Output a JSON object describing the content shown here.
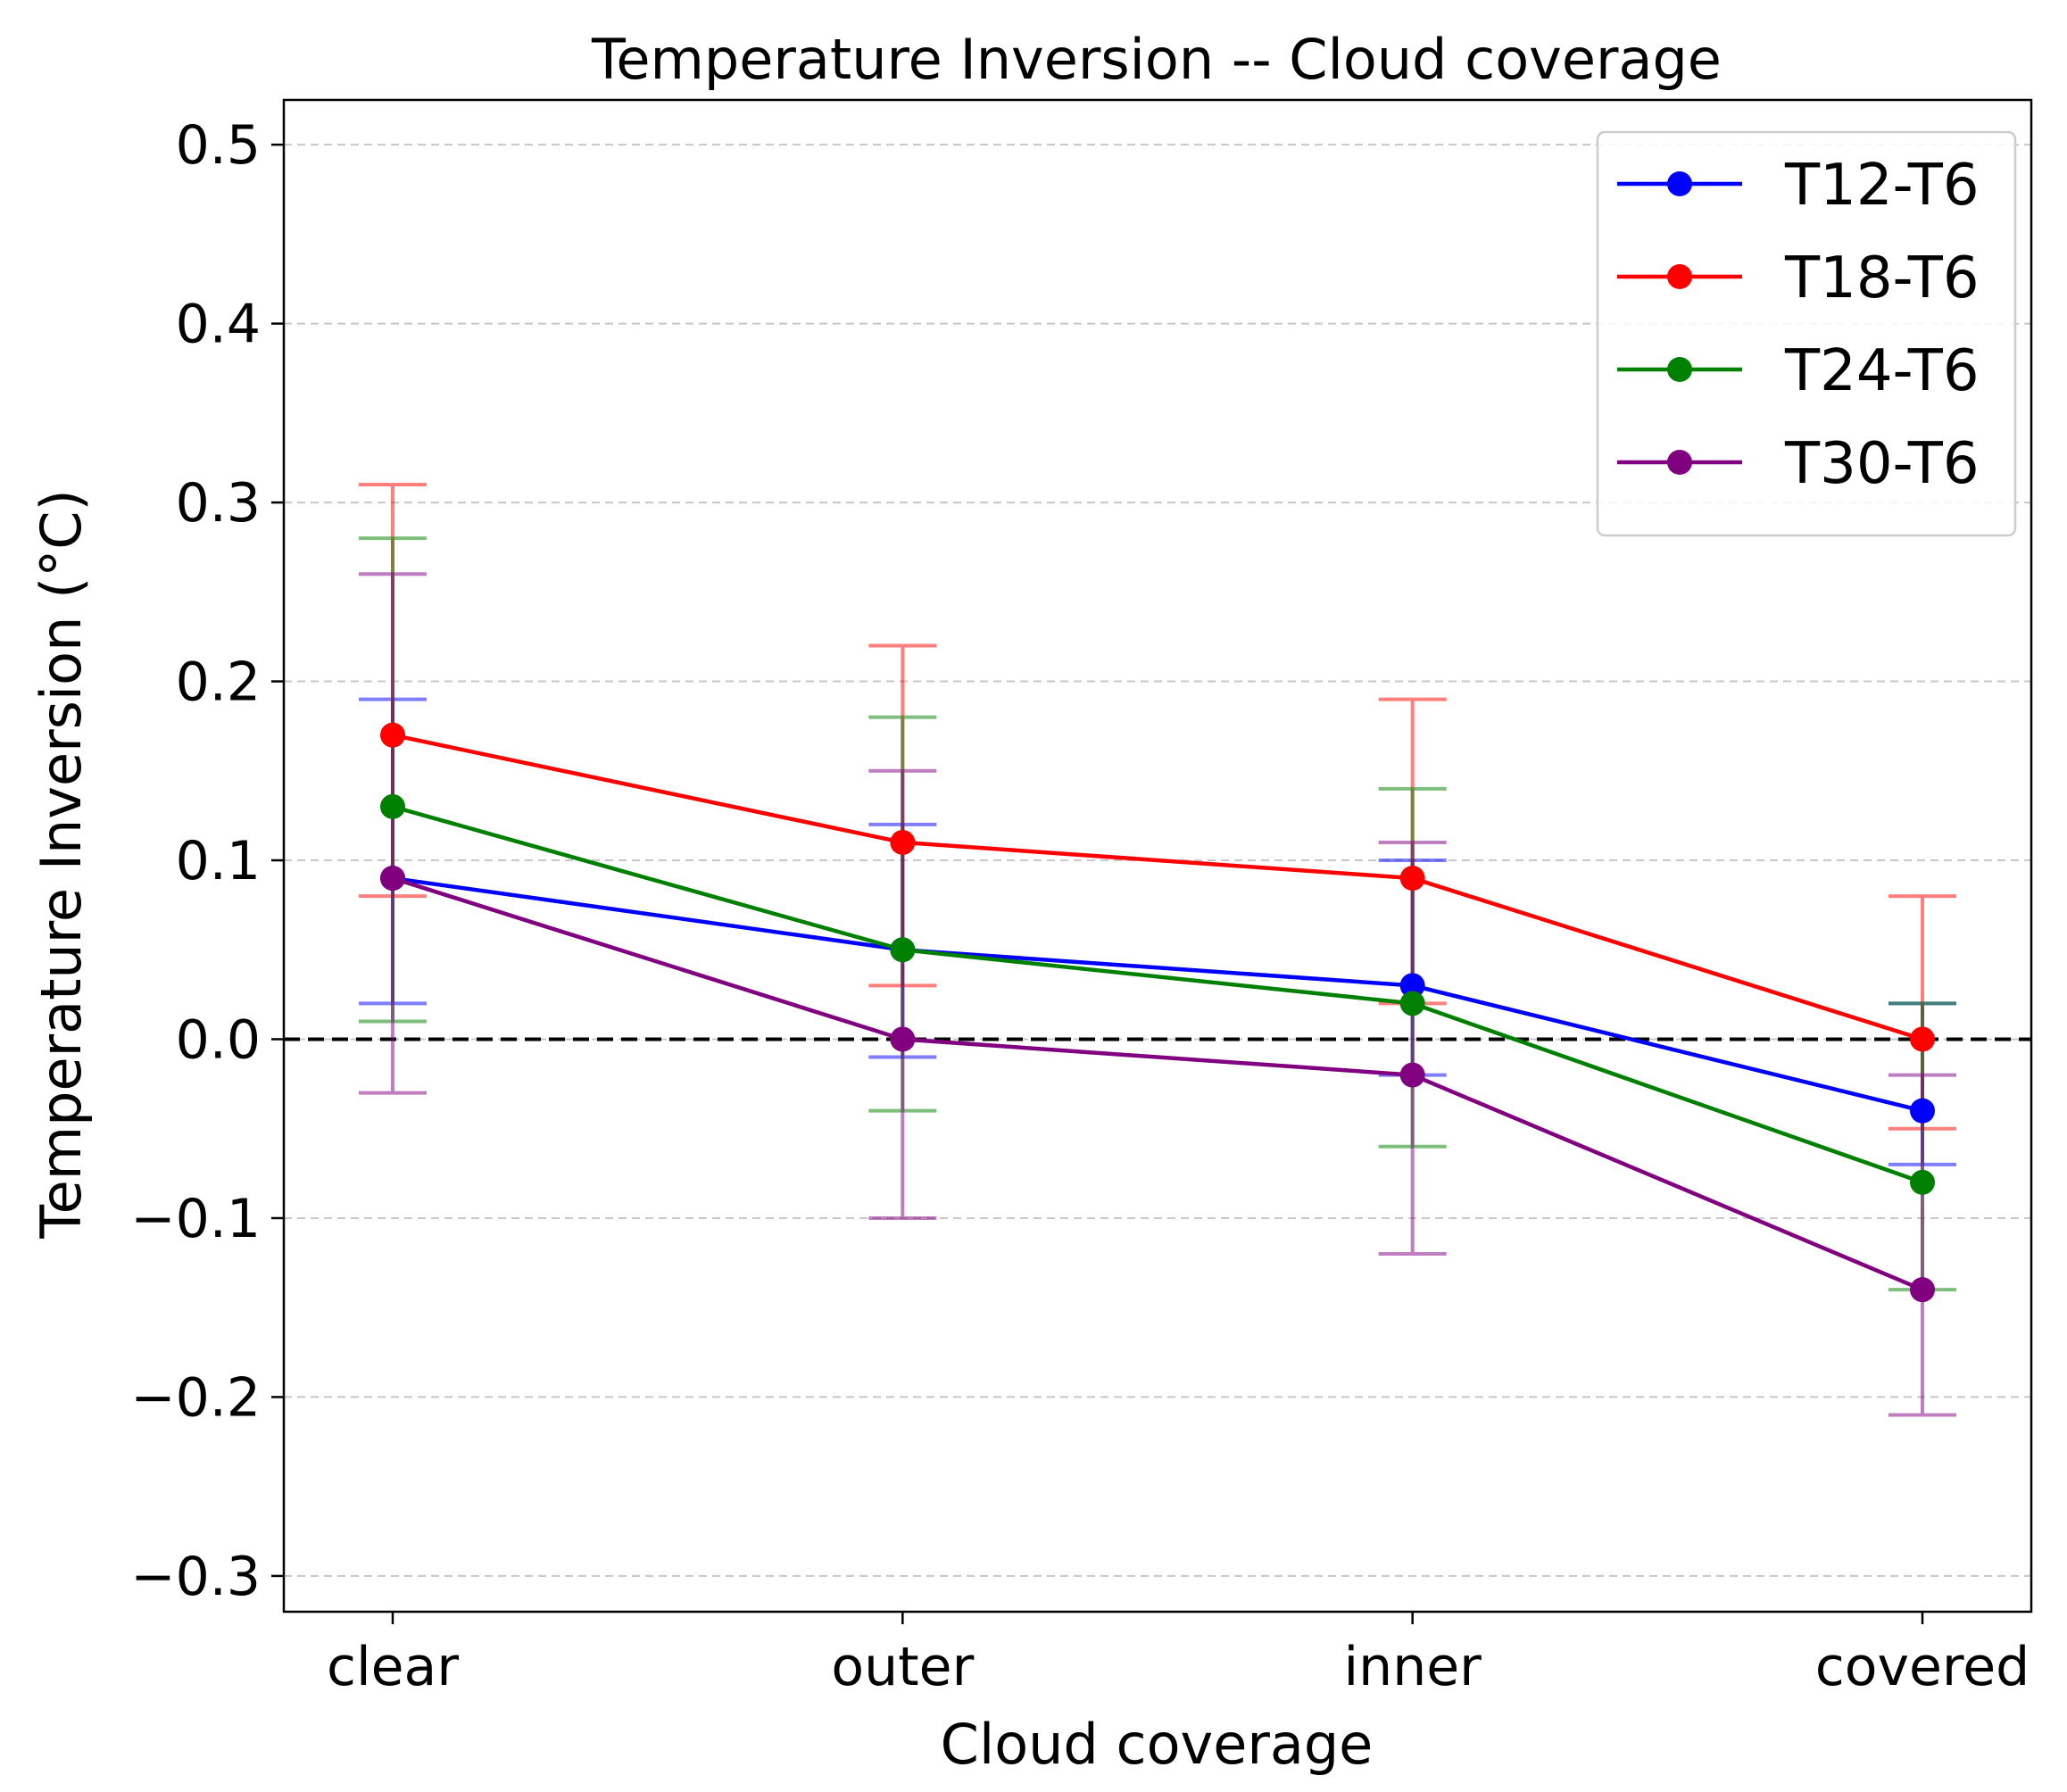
{
  "chart_data": {
    "type": "line",
    "title": "Temperature Inversion -- Cloud coverage",
    "xlabel": "Cloud coverage",
    "ylabel": "Temperature Inversion (°C)",
    "categories": [
      "clear",
      "outer",
      "inner",
      "covered"
    ],
    "ylim": [
      -0.32,
      0.525
    ],
    "yticks": [
      -0.3,
      -0.2,
      -0.1,
      0.0,
      0.1,
      0.2,
      0.3,
      0.4,
      0.5
    ],
    "ytick_labels": [
      "−0.3",
      "−0.2",
      "−0.1",
      "0.0",
      "0.1",
      "0.2",
      "0.3",
      "0.4",
      "0.5"
    ],
    "grid": "y-dashed",
    "reference_line": 0.0,
    "legend_position": "upper right",
    "series": [
      {
        "name": "T12-T6",
        "color": "#0000ff",
        "values": [
          0.09,
          0.05,
          0.03,
          -0.04
        ],
        "err_low": [
          0.02,
          -0.01,
          -0.02,
          -0.07
        ],
        "err_high": [
          0.19,
          0.12,
          0.1,
          0.02
        ]
      },
      {
        "name": "T18-T6",
        "color": "#ff0000",
        "values": [
          0.17,
          0.11,
          0.09,
          0.0
        ],
        "err_low": [
          0.08,
          0.03,
          0.02,
          -0.05
        ],
        "err_high": [
          0.31,
          0.22,
          0.19,
          0.08
        ]
      },
      {
        "name": "T24-T6",
        "color": "#008000",
        "values": [
          0.13,
          0.05,
          0.02,
          -0.08
        ],
        "err_low": [
          0.01,
          -0.04,
          -0.06,
          -0.14
        ],
        "err_high": [
          0.28,
          0.18,
          0.14,
          0.02
        ]
      },
      {
        "name": "T30-T6",
        "color": "#800080",
        "values": [
          0.09,
          0.0,
          -0.02,
          -0.14
        ],
        "err_low": [
          -0.03,
          -0.1,
          -0.12,
          -0.21
        ],
        "err_high": [
          0.26,
          0.15,
          0.11,
          -0.02
        ]
      }
    ]
  }
}
